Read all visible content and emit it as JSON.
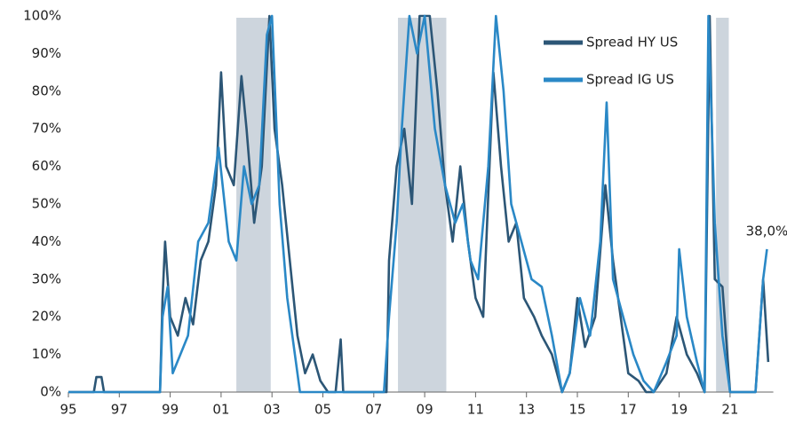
{
  "chart_data": {
    "type": "line",
    "xlim": [
      1995,
      2022.7
    ],
    "ylim": [
      0,
      100
    ],
    "xticks": [
      {
        "value": 1995,
        "label": "95"
      },
      {
        "value": 1997,
        "label": "97"
      },
      {
        "value": 1999,
        "label": "99"
      },
      {
        "value": 2001,
        "label": "01"
      },
      {
        "value": 2003,
        "label": "03"
      },
      {
        "value": 2005,
        "label": "05"
      },
      {
        "value": 2007,
        "label": "07"
      },
      {
        "value": 2009,
        "label": "09"
      },
      {
        "value": 2011,
        "label": "11"
      },
      {
        "value": 2013,
        "label": "13"
      },
      {
        "value": 2015,
        "label": "15"
      },
      {
        "value": 2017,
        "label": "17"
      },
      {
        "value": 2019,
        "label": "19"
      },
      {
        "value": 2021,
        "label": "21"
      }
    ],
    "yticks": [
      {
        "value": 0,
        "label": "0%"
      },
      {
        "value": 10,
        "label": "10%"
      },
      {
        "value": 20,
        "label": "20%"
      },
      {
        "value": 30,
        "label": "30%"
      },
      {
        "value": 40,
        "label": "40%"
      },
      {
        "value": 50,
        "label": "50%"
      },
      {
        "value": 60,
        "label": "60%"
      },
      {
        "value": 70,
        "label": "70%"
      },
      {
        "value": 80,
        "label": "80%"
      },
      {
        "value": 90,
        "label": "90%"
      },
      {
        "value": 100,
        "label": "100%"
      }
    ],
    "shaded_ranges": [
      [
        2001.6,
        2002.95
      ],
      [
        2007.95,
        2009.85
      ],
      [
        2020.45,
        2020.95
      ]
    ],
    "shade_color": "#cdd5dd",
    "legend": "upper right",
    "series": [
      {
        "name": "Spread HY US",
        "color": "#2c5676",
        "x": [
          1995.0,
          1996.0,
          1996.1,
          1996.3,
          1996.4,
          1998.6,
          1998.7,
          1998.8,
          1999.0,
          1999.3,
          1999.6,
          1999.9,
          2000.2,
          2000.5,
          2000.8,
          2001.0,
          2001.2,
          2001.5,
          2001.8,
          2002.0,
          2002.3,
          2002.6,
          2002.9,
          2003.1,
          2003.4,
          2003.7,
          2004.0,
          2004.3,
          2004.6,
          2004.9,
          2005.2,
          2005.5,
          2005.7,
          2005.8,
          2006.5,
          2007.5,
          2007.6,
          2007.9,
          2008.2,
          2008.5,
          2008.8,
          2009.2,
          2009.5,
          2009.8,
          2010.1,
          2010.4,
          2010.7,
          2011.0,
          2011.3,
          2011.7,
          2012.0,
          2012.3,
          2012.6,
          2012.9,
          2013.3,
          2013.6,
          2014.0,
          2014.4,
          2014.7,
          2015.0,
          2015.3,
          2015.7,
          2016.1,
          2016.4,
          2016.7,
          2017.0,
          2017.4,
          2017.7,
          2018.0,
          2018.5,
          2018.9,
          2019.3,
          2019.7,
          2020.0,
          2020.2,
          2020.4,
          2020.7,
          2021.0,
          2021.5,
          2022.0,
          2022.3,
          2022.5
        ],
        "values": [
          0,
          0,
          4,
          4,
          0,
          0,
          25,
          40,
          20,
          15,
          25,
          18,
          35,
          40,
          55,
          85,
          60,
          55,
          84,
          70,
          45,
          60,
          100,
          70,
          55,
          35,
          15,
          5,
          10,
          3,
          0,
          0,
          14,
          0,
          0,
          0,
          35,
          60,
          70,
          50,
          100,
          100,
          80,
          55,
          40,
          60,
          40,
          25,
          20,
          85,
          60,
          40,
          45,
          25,
          20,
          15,
          10,
          0,
          5,
          25,
          12,
          20,
          55,
          35,
          20,
          5,
          3,
          0,
          0,
          5,
          20,
          10,
          5,
          0,
          100,
          30,
          28,
          0,
          0,
          0,
          30,
          8
        ]
      },
      {
        "name": "Spread IG US",
        "color": "#2a88c6",
        "x": [
          1995.0,
          1998.6,
          1998.7,
          1998.9,
          1999.1,
          1999.4,
          1999.7,
          2000.1,
          2000.5,
          2000.9,
          2001.3,
          2001.6,
          2001.9,
          2002.2,
          2002.5,
          2002.8,
          2003.0,
          2003.3,
          2003.6,
          2003.9,
          2004.1,
          2007.4,
          2007.6,
          2007.9,
          2008.1,
          2008.4,
          2008.7,
          2009.0,
          2009.4,
          2009.8,
          2010.2,
          2010.5,
          2010.8,
          2011.1,
          2011.5,
          2011.8,
          2012.1,
          2012.4,
          2012.8,
          2013.2,
          2013.6,
          2014.0,
          2014.4,
          2014.7,
          2015.1,
          2015.5,
          2015.9,
          2016.15,
          2016.4,
          2016.8,
          2017.2,
          2017.6,
          2018.0,
          2018.5,
          2018.9,
          2019.0,
          2019.3,
          2019.7,
          2020.0,
          2020.15,
          2020.4,
          2020.7,
          2021.0,
          2022.0,
          2022.3,
          2022.45
        ],
        "values": [
          0,
          0,
          20,
          28,
          5,
          10,
          15,
          40,
          45,
          65,
          40,
          35,
          60,
          50,
          55,
          95,
          100,
          50,
          25,
          10,
          0,
          0,
          20,
          45,
          70,
          100,
          90,
          100,
          70,
          55,
          45,
          50,
          35,
          30,
          60,
          100,
          80,
          50,
          40,
          30,
          28,
          15,
          0,
          5,
          25,
          15,
          40,
          77,
          30,
          20,
          10,
          3,
          0,
          8,
          15,
          38,
          20,
          8,
          0,
          100,
          45,
          15,
          0,
          0,
          30,
          38
        ]
      }
    ],
    "annotations": [
      {
        "text": "38,0%",
        "x": 2022.45,
        "value": 38
      }
    ]
  }
}
